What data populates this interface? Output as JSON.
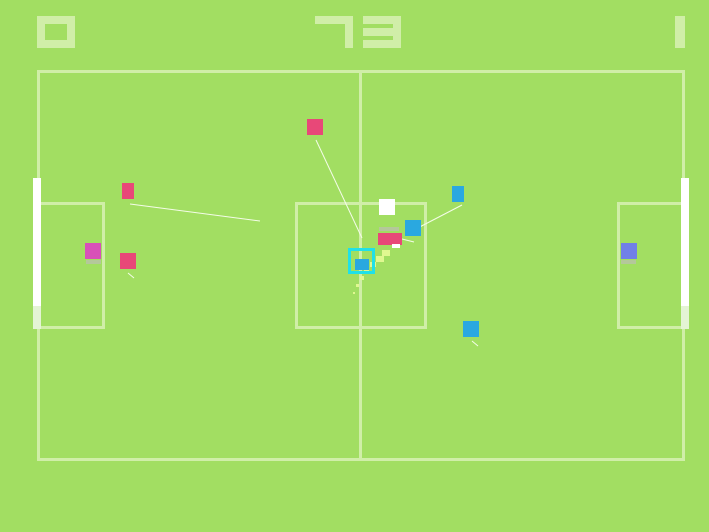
{
  "hud": {
    "score_left": 0,
    "timer": 73,
    "score_right": 1
  },
  "colors": {
    "pitch": "#a2de62",
    "lines": "#d0eea8",
    "hud_digits": "#d0eea8",
    "goal_post": "#ffffff",
    "team_red": "#e84878",
    "team_red_goalkeeper": "#d850b8",
    "team_blue": "#2aa8e0",
    "team_blue_goalkeeper": "#7080e8",
    "ball": "#ffffff",
    "selection_cursor": "#20e0e8",
    "trail": "#e0f890"
  },
  "players": [
    {
      "team": "red",
      "role": "goalkeeper"
    },
    {
      "team": "red",
      "role": "defender"
    },
    {
      "team": "red",
      "role": "defender"
    },
    {
      "team": "red",
      "role": "midfielder"
    },
    {
      "team": "red",
      "role": "forward"
    },
    {
      "team": "blue",
      "role": "forward"
    },
    {
      "team": "blue",
      "role": "midfielder"
    },
    {
      "team": "blue",
      "role": "defender"
    },
    {
      "team": "blue",
      "role": "goalkeeper"
    },
    {
      "team": "blue",
      "role": "controlled"
    }
  ]
}
